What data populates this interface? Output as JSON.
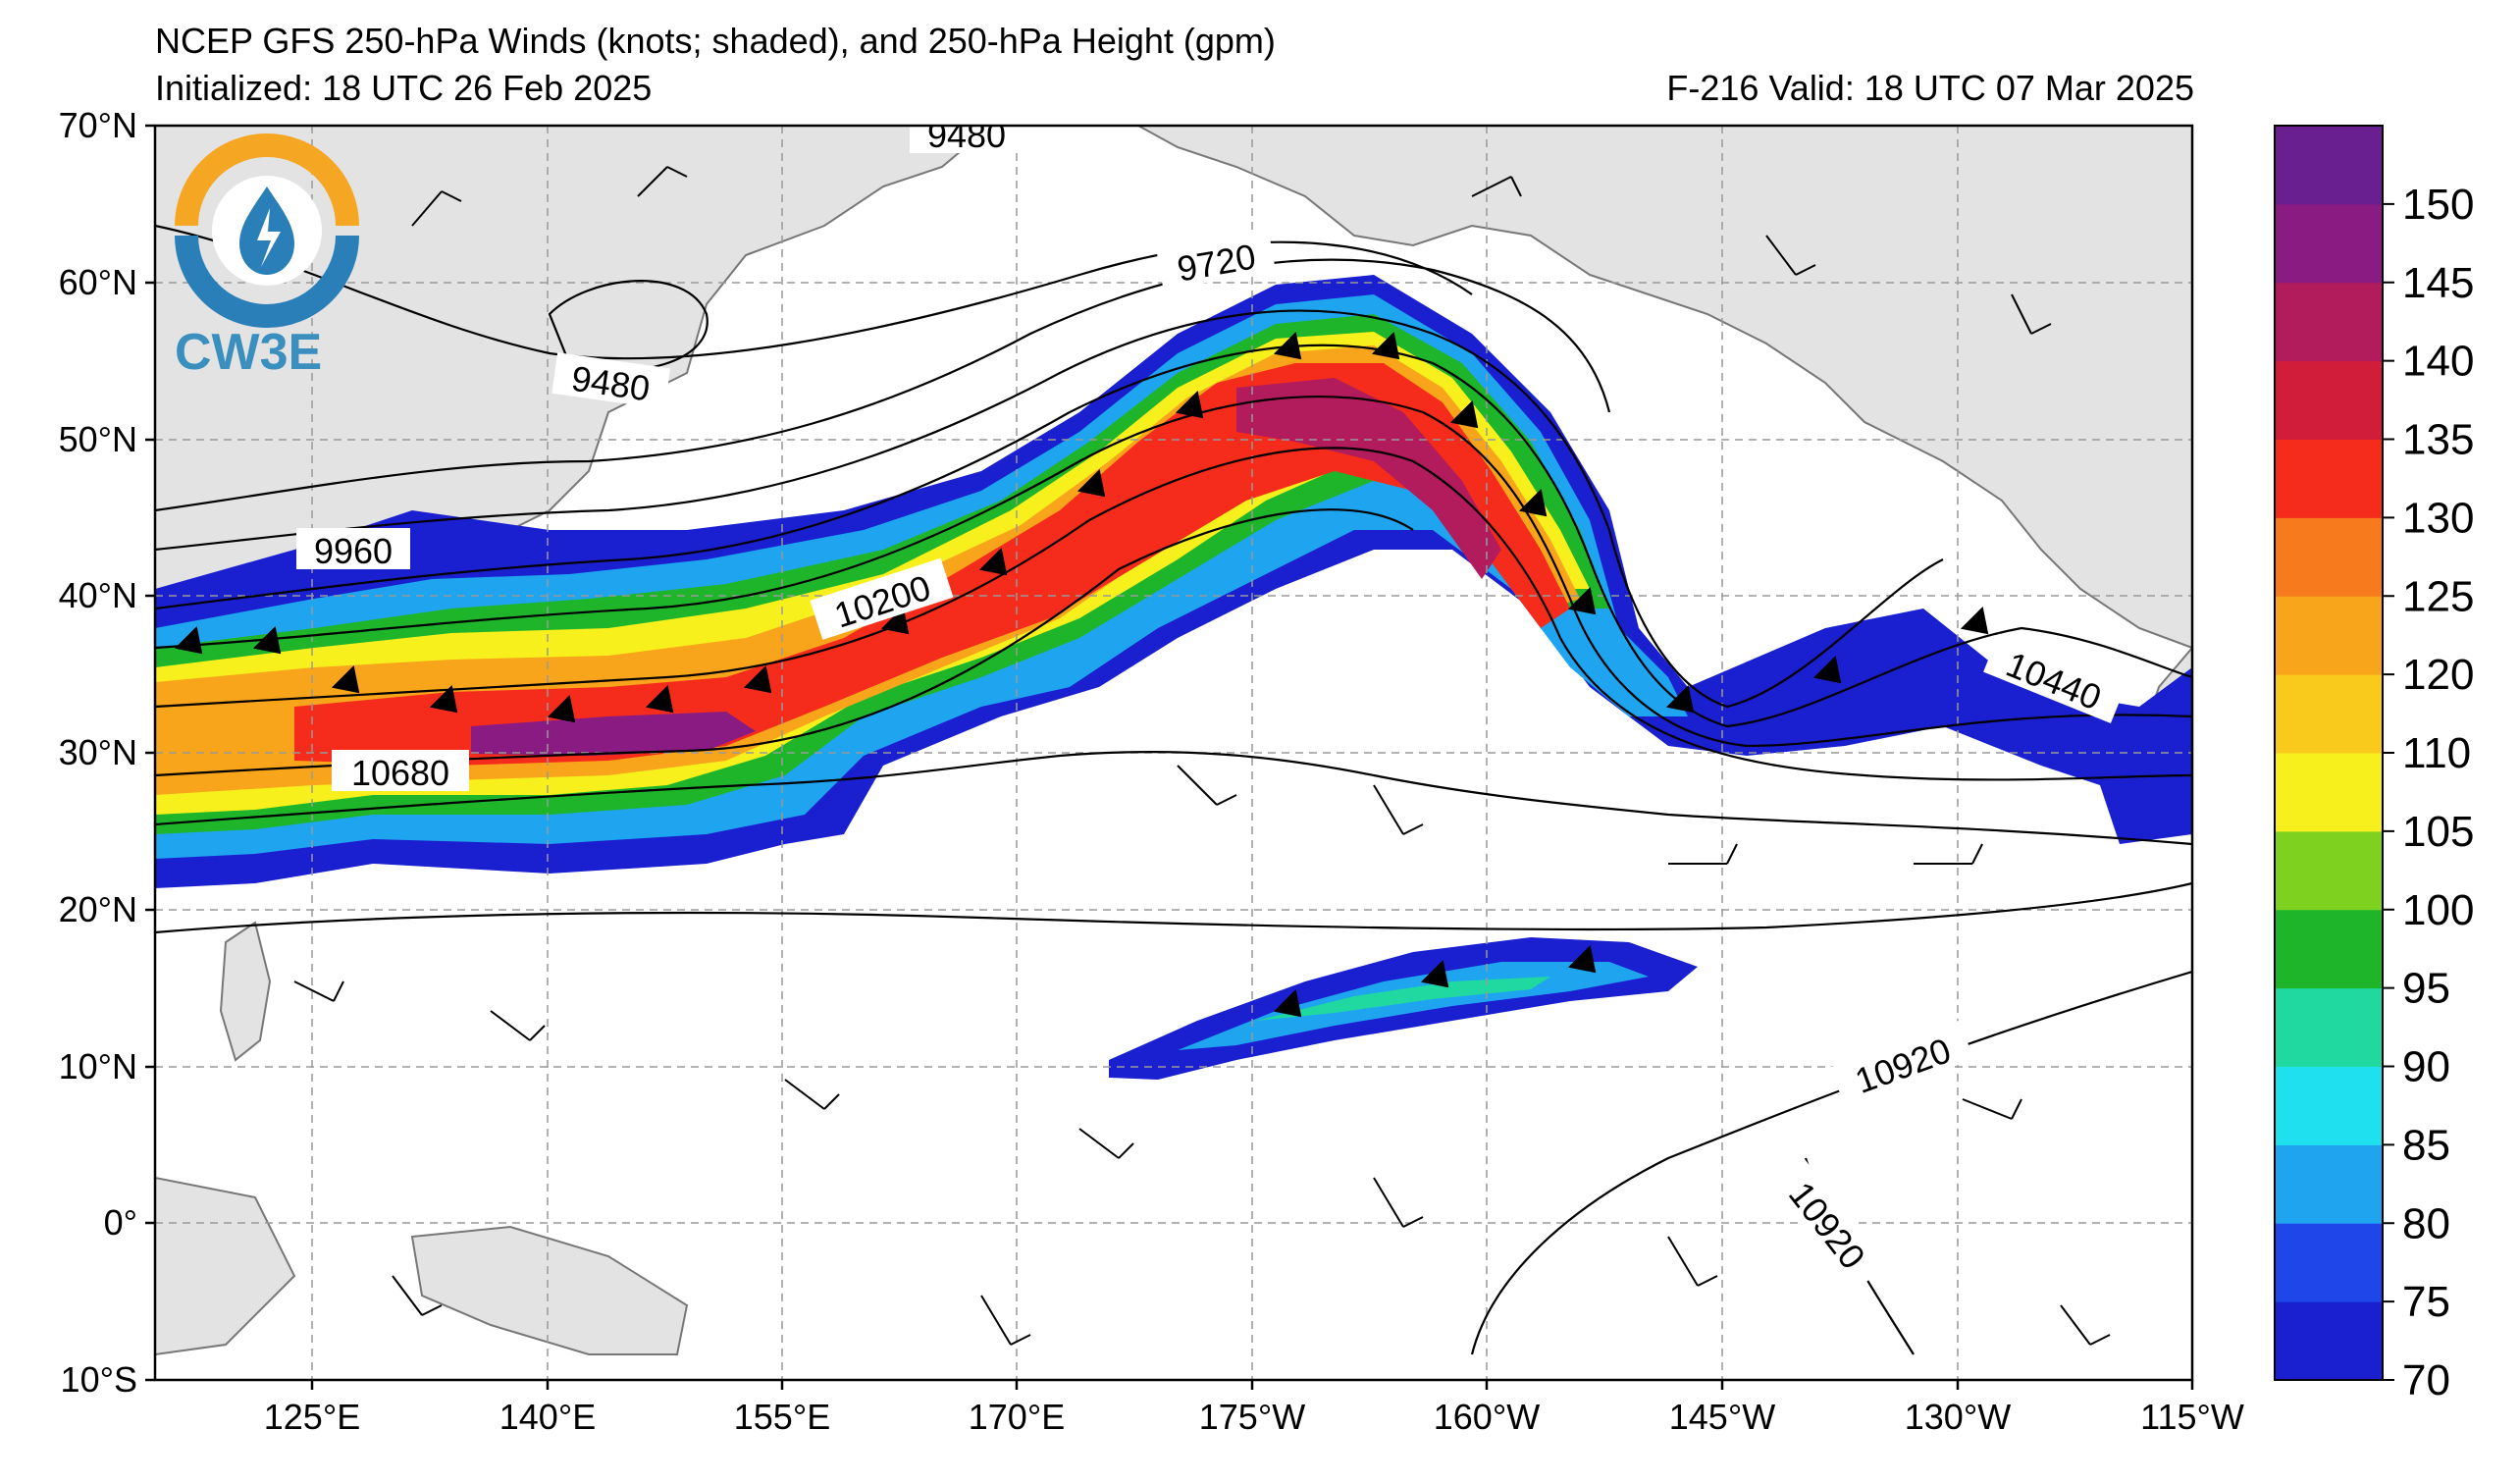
{
  "header": {
    "title": "NCEP GFS 250-hPa Winds (knots; shaded), and 250-hPa Height (gpm)",
    "initialized": "Initialized: 18 UTC 26 Feb 2025",
    "valid": "F-216  Valid: 18 UTC 07 Mar 2025"
  },
  "logo": {
    "text": "CW3E"
  },
  "axes": {
    "lat_labels": [
      "70°N",
      "60°N",
      "50°N",
      "40°N",
      "30°N",
      "20°N",
      "10°N",
      "0°",
      "10°S"
    ],
    "lon_labels": [
      "125°E",
      "140°E",
      "155°E",
      "170°E",
      "175°W",
      "160°W",
      "145°W",
      "130°W",
      "115°W"
    ]
  },
  "contour_labels": [
    "9480",
    "9720",
    "9480",
    "9960",
    "10200",
    "10680",
    "10440",
    "10920",
    "10920"
  ],
  "colorbar": {
    "labels": [
      "150",
      "145",
      "140",
      "135",
      "130",
      "125",
      "120",
      "110",
      "105",
      "100",
      "95",
      "90",
      "85",
      "80",
      "75",
      "70"
    ],
    "colors": [
      "#1a1fcf",
      "#1f46e8",
      "#1fa4f0",
      "#1ee0ee",
      "#20d9a0",
      "#1fb52b",
      "#7fd11f",
      "#f7f01c",
      "#f9ca1b",
      "#f8a51b",
      "#f77a1d",
      "#f52c1c",
      "#d11c3a",
      "#b21b5c",
      "#8a1b82",
      "#6a1f90"
    ]
  },
  "colors": {
    "land": "#e3e3e3",
    "coast": "#777777",
    "grid": "#999999"
  }
}
